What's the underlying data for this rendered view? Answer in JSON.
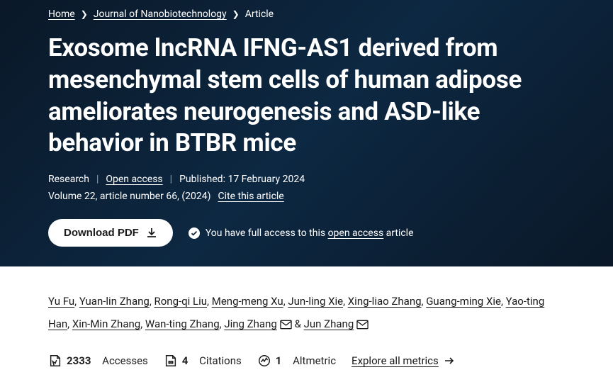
{
  "breadcrumb": {
    "home": "Home",
    "journal": "Journal of Nanobiotechnology",
    "current": "Article"
  },
  "title": "Exosome lncRNA IFNG-AS1 derived from mesenchymal stem cells of human adipose ameliorates neurogenesis and ASD-like behavior in BTBR mice",
  "meta": {
    "type": "Research",
    "access": "Open access",
    "published_label": "Published:",
    "published_date": "17 February 2024",
    "volume_line": "Volume 22, article number 66, (2024)",
    "cite": "Cite this article"
  },
  "download": {
    "label": "Download PDF"
  },
  "access_note": {
    "prefix": "You have full access to this ",
    "link": "open access",
    "suffix": " article"
  },
  "authors": [
    {
      "name": "Yu Fu"
    },
    {
      "name": "Yuan-lin Zhang"
    },
    {
      "name": "Rong-qi Liu"
    },
    {
      "name": "Meng-meng Xu"
    },
    {
      "name": "Jun-ling Xie"
    },
    {
      "name": "Xing-liao Zhang"
    },
    {
      "name": "Guang-ming Xie"
    },
    {
      "name": "Yao-ting Han"
    },
    {
      "name": "Xin-Min Zhang"
    },
    {
      "name": "Wan-ting Zhang"
    },
    {
      "name": "Jing Zhang",
      "corresponding": true
    },
    {
      "name": "Jun Zhang",
      "corresponding": true
    }
  ],
  "metrics": {
    "accesses": {
      "value": "2333",
      "label": "Accesses"
    },
    "citations": {
      "value": "4",
      "label": "Citations"
    },
    "altmetric": {
      "value": "1",
      "label": "Altmetric"
    },
    "explore": "Explore all metrics"
  },
  "colors": {
    "header_bg": "#0d2842",
    "text_light": "#ffffff",
    "text_dark": "#1a1a1a"
  }
}
